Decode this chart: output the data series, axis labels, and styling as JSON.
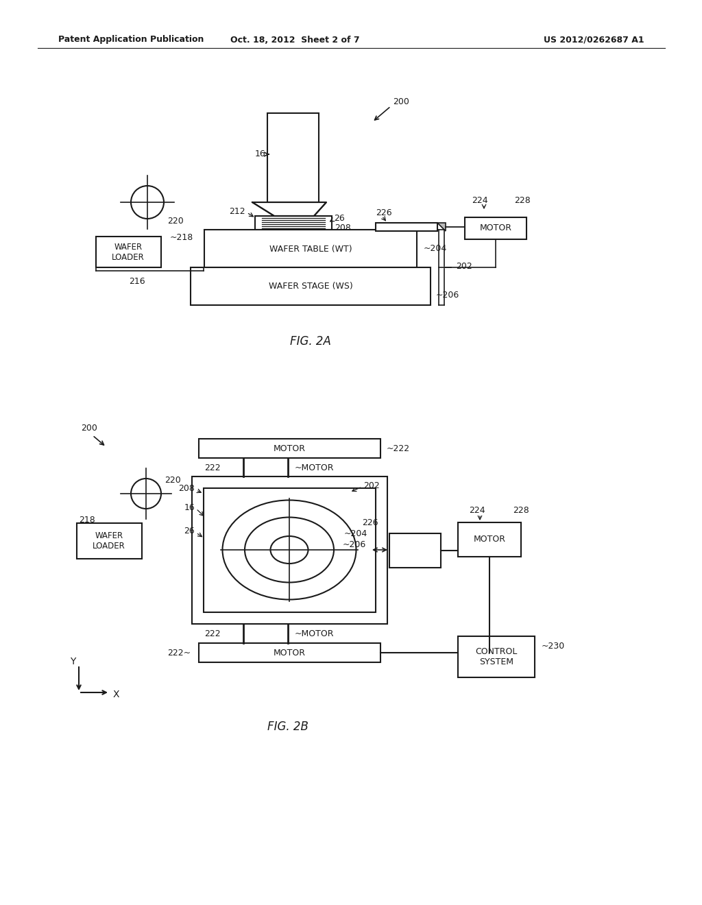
{
  "bg_color": "#ffffff",
  "header_left": "Patent Application Publication",
  "header_center": "Oct. 18, 2012  Sheet 2 of 7",
  "header_right": "US 2012/0262687 A1",
  "line_color": "#1a1a1a",
  "text_color": "#1a1a1a"
}
